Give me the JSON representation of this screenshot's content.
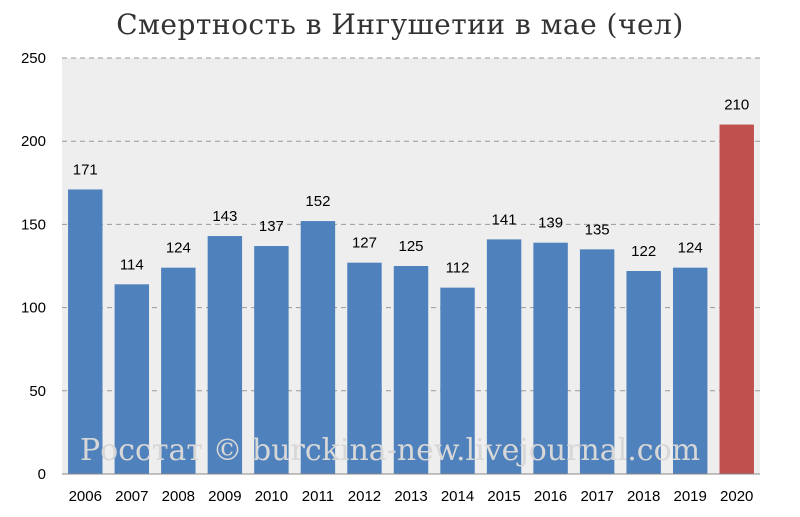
{
  "chart_data": {
    "type": "bar",
    "title": "Смертность в Ингушетии в мае (чел)",
    "categories": [
      "2006",
      "2007",
      "2008",
      "2009",
      "2010",
      "2011",
      "2012",
      "2013",
      "2014",
      "2015",
      "2016",
      "2017",
      "2018",
      "2019",
      "2020"
    ],
    "values": [
      171,
      114,
      124,
      143,
      137,
      152,
      127,
      125,
      112,
      141,
      139,
      135,
      122,
      124,
      210
    ],
    "ylim": [
      0,
      250
    ],
    "yticks": [
      0,
      50,
      100,
      150,
      200,
      250
    ],
    "grid": true,
    "colors": {
      "default": "#4f81bd",
      "highlight": "#c0504d",
      "highlight_index": 14
    },
    "watermark": "Росстат © burckina-new.livejournal.com"
  }
}
